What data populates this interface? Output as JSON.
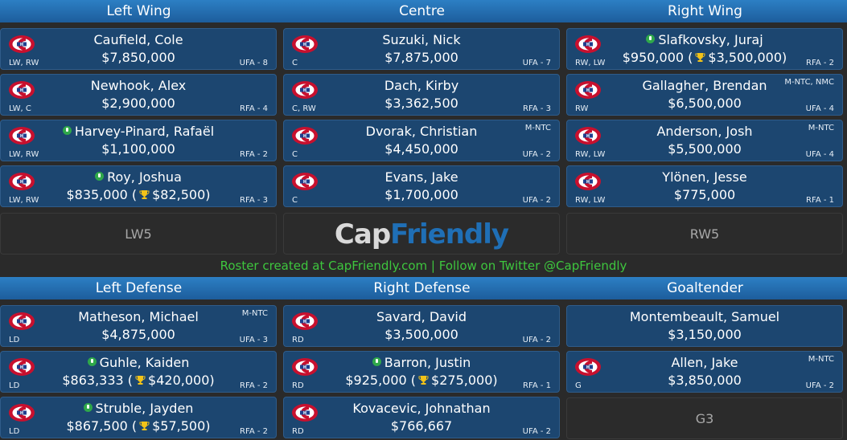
{
  "headers": {
    "left_wing": "Left Wing",
    "centre": "Centre",
    "right_wing": "Right Wing",
    "left_defense": "Left Defense",
    "right_defense": "Right Defense",
    "goaltender": "Goaltender"
  },
  "left_wing": [
    {
      "name": "Caufield, Cole",
      "salary": "$7,850,000",
      "pos": "LW, RW",
      "contract": "UFA - 8",
      "clause": "",
      "info": false,
      "bonus": ""
    },
    {
      "name": "Newhook, Alex",
      "salary": "$2,900,000",
      "pos": "LW, C",
      "contract": "RFA - 4",
      "clause": "",
      "info": false,
      "bonus": ""
    },
    {
      "name": "Harvey-Pinard, Rafaël",
      "salary": "$1,100,000",
      "pos": "LW, RW",
      "contract": "RFA - 2",
      "clause": "",
      "info": true,
      "bonus": ""
    },
    {
      "name": "Roy, Joshua",
      "salary": "$835,000",
      "pos": "LW, RW",
      "contract": "RFA - 3",
      "clause": "",
      "info": true,
      "bonus": "$82,500"
    }
  ],
  "centre": [
    {
      "name": "Suzuki, Nick",
      "salary": "$7,875,000",
      "pos": "C",
      "contract": "UFA - 7",
      "clause": "",
      "info": false,
      "bonus": ""
    },
    {
      "name": "Dach, Kirby",
      "salary": "$3,362,500",
      "pos": "C, RW",
      "contract": "RFA - 3",
      "clause": "",
      "info": false,
      "bonus": ""
    },
    {
      "name": "Dvorak, Christian",
      "salary": "$4,450,000",
      "pos": "C",
      "contract": "UFA - 2",
      "clause": "M-NTC",
      "info": false,
      "bonus": ""
    },
    {
      "name": "Evans, Jake",
      "salary": "$1,700,000",
      "pos": "C",
      "contract": "UFA - 2",
      "clause": "",
      "info": false,
      "bonus": ""
    }
  ],
  "right_wing": [
    {
      "name": "Slafkovsky, Juraj",
      "salary": "$950,000",
      "pos": "RW, LW",
      "contract": "RFA - 2",
      "clause": "",
      "info": true,
      "bonus": "$3,500,000"
    },
    {
      "name": "Gallagher, Brendan",
      "salary": "$6,500,000",
      "pos": "RW",
      "contract": "UFA - 4",
      "clause": "M-NTC, NMC",
      "info": false,
      "bonus": ""
    },
    {
      "name": "Anderson, Josh",
      "salary": "$5,500,000",
      "pos": "RW, LW",
      "contract": "UFA - 4",
      "clause": "M-NTC",
      "info": false,
      "bonus": ""
    },
    {
      "name": "Ylönen, Jesse",
      "salary": "$775,000",
      "pos": "RW, LW",
      "contract": "RFA - 1",
      "clause": "",
      "info": false,
      "bonus": ""
    }
  ],
  "left_defense": [
    {
      "name": "Matheson, Michael",
      "salary": "$4,875,000",
      "pos": "LD",
      "contract": "UFA - 3",
      "clause": "M-NTC",
      "info": false,
      "bonus": ""
    },
    {
      "name": "Guhle, Kaiden",
      "salary": "$863,333",
      "pos": "LD",
      "contract": "RFA - 2",
      "clause": "",
      "info": true,
      "bonus": "$420,000"
    },
    {
      "name": "Struble, Jayden",
      "salary": "$867,500",
      "pos": "LD",
      "contract": "RFA - 2",
      "clause": "",
      "info": true,
      "bonus": "$57,500"
    }
  ],
  "right_defense": [
    {
      "name": "Savard, David",
      "salary": "$3,500,000",
      "pos": "RD",
      "contract": "UFA - 2",
      "clause": "",
      "info": false,
      "bonus": ""
    },
    {
      "name": "Barron, Justin",
      "salary": "$925,000",
      "pos": "RD",
      "contract": "RFA - 1",
      "clause": "",
      "info": true,
      "bonus": "$275,000"
    },
    {
      "name": "Kovacevic, Johnathan",
      "salary": "$766,667",
      "pos": "RD",
      "contract": "UFA - 2",
      "clause": "",
      "info": false,
      "bonus": ""
    }
  ],
  "goaltender": [
    {
      "name": "Montembeault, Samuel",
      "salary": "$3,150,000",
      "pos": "",
      "contract": "",
      "clause": "",
      "info": false,
      "bonus": "",
      "nologo": true
    },
    {
      "name": "Allen, Jake",
      "salary": "$3,850,000",
      "pos": "G",
      "contract": "UFA - 2",
      "clause": "M-NTC",
      "info": false,
      "bonus": ""
    }
  ],
  "empty_slots": {
    "lw5": "LW5",
    "rw5": "RW5",
    "g3": "G3"
  },
  "brand": {
    "cap": "Cap",
    "friendly": "Friendly"
  },
  "footer": "Roster created at CapFriendly.com | Follow on Twitter @CapFriendly",
  "colors": {
    "header": "#2c7fc4",
    "card": "#1c4670",
    "footer_text": "#3ec63e",
    "logo_red": "#c8102e",
    "logo_blue": "#1f3f8f"
  }
}
